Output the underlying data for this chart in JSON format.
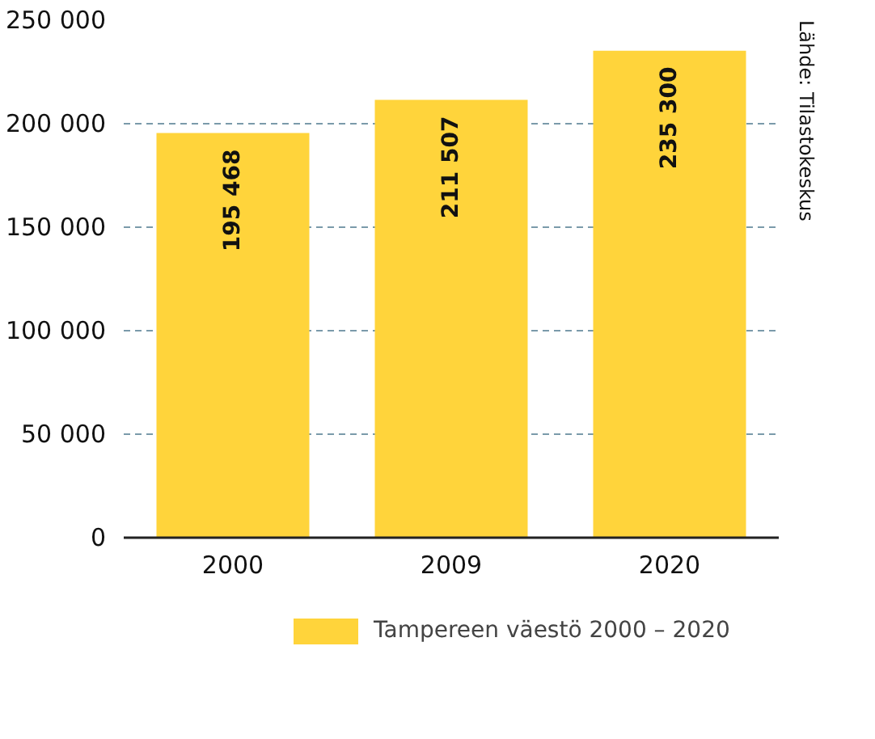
{
  "chart_data": {
    "type": "bar",
    "categories": [
      "2000",
      "2009",
      "2020"
    ],
    "series": [
      {
        "name": "Tampereen väestö 2000 – 2020",
        "color": "#ffd43b",
        "values": [
          195468,
          211507,
          235300
        ]
      }
    ],
    "value_labels": [
      "195 468",
      "211 507",
      "235 300"
    ],
    "ylim": [
      0,
      250000
    ],
    "yticks": [
      {
        "value": 0,
        "label": "0"
      },
      {
        "value": 50000,
        "label": "50 000"
      },
      {
        "value": 100000,
        "label": "100 000"
      },
      {
        "value": 150000,
        "label": "150 000"
      },
      {
        "value": 200000,
        "label": "200 000"
      },
      {
        "value": 250000,
        "label": "250 000"
      }
    ],
    "grid": "y",
    "legend": "bottom",
    "annotations": [
      "Lähde: Tilastokeskus"
    ]
  }
}
